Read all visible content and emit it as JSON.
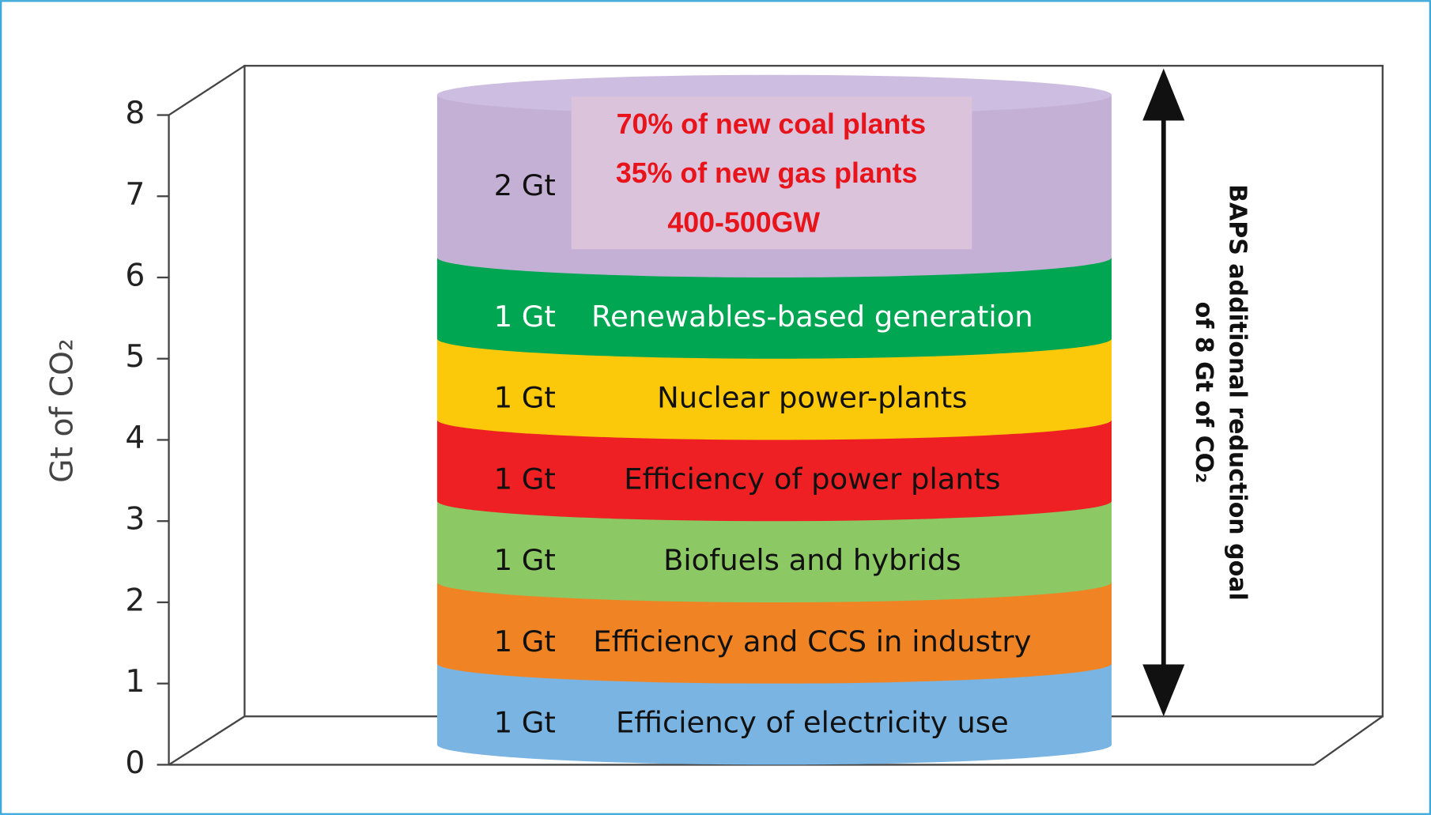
{
  "chart_data": {
    "type": "stacked-cylinder",
    "ylabel": "Gt of CO₂",
    "ylim": [
      0,
      8
    ],
    "yticks": [
      0,
      1,
      2,
      3,
      4,
      5,
      6,
      7,
      8
    ],
    "series": [
      {
        "name": "Efficiency of electricity use",
        "color": "#7ab4e2",
        "values": [
          1
        ],
        "value_labels": [
          "1 Gt"
        ]
      },
      {
        "name": "Efficiency and CCS in industry",
        "color": "#f08424",
        "values": [
          1
        ],
        "value_labels": [
          "1 Gt"
        ]
      },
      {
        "name": "Biofuels and hybrids",
        "color": "#8cc864",
        "values": [
          1
        ],
        "value_labels": [
          "1 Gt"
        ]
      },
      {
        "name": "Efficiency of power plants",
        "color": "#ee2024",
        "values": [
          1
        ],
        "value_labels": [
          "1 Gt"
        ]
      },
      {
        "name": "Nuclear power-plants",
        "color": "#fbc90a",
        "values": [
          1
        ],
        "value_labels": [
          "1 Gt"
        ]
      },
      {
        "name": "Renewables-based generation",
        "color": "#00a651",
        "values": [
          1
        ],
        "value_labels": [
          "1 Gt"
        ]
      },
      {
        "color": "#c5b0d5",
        "values": [
          2
        ],
        "value_labels": [
          "2 Gt"
        ]
      }
    ],
    "annotations": [
      "70% of new coal plants",
      "35% of new gas plants",
      "400-500GW"
    ],
    "side_label": [
      "BAPS additional reduction goal",
      "of 8 Gt of CO₂"
    ]
  }
}
